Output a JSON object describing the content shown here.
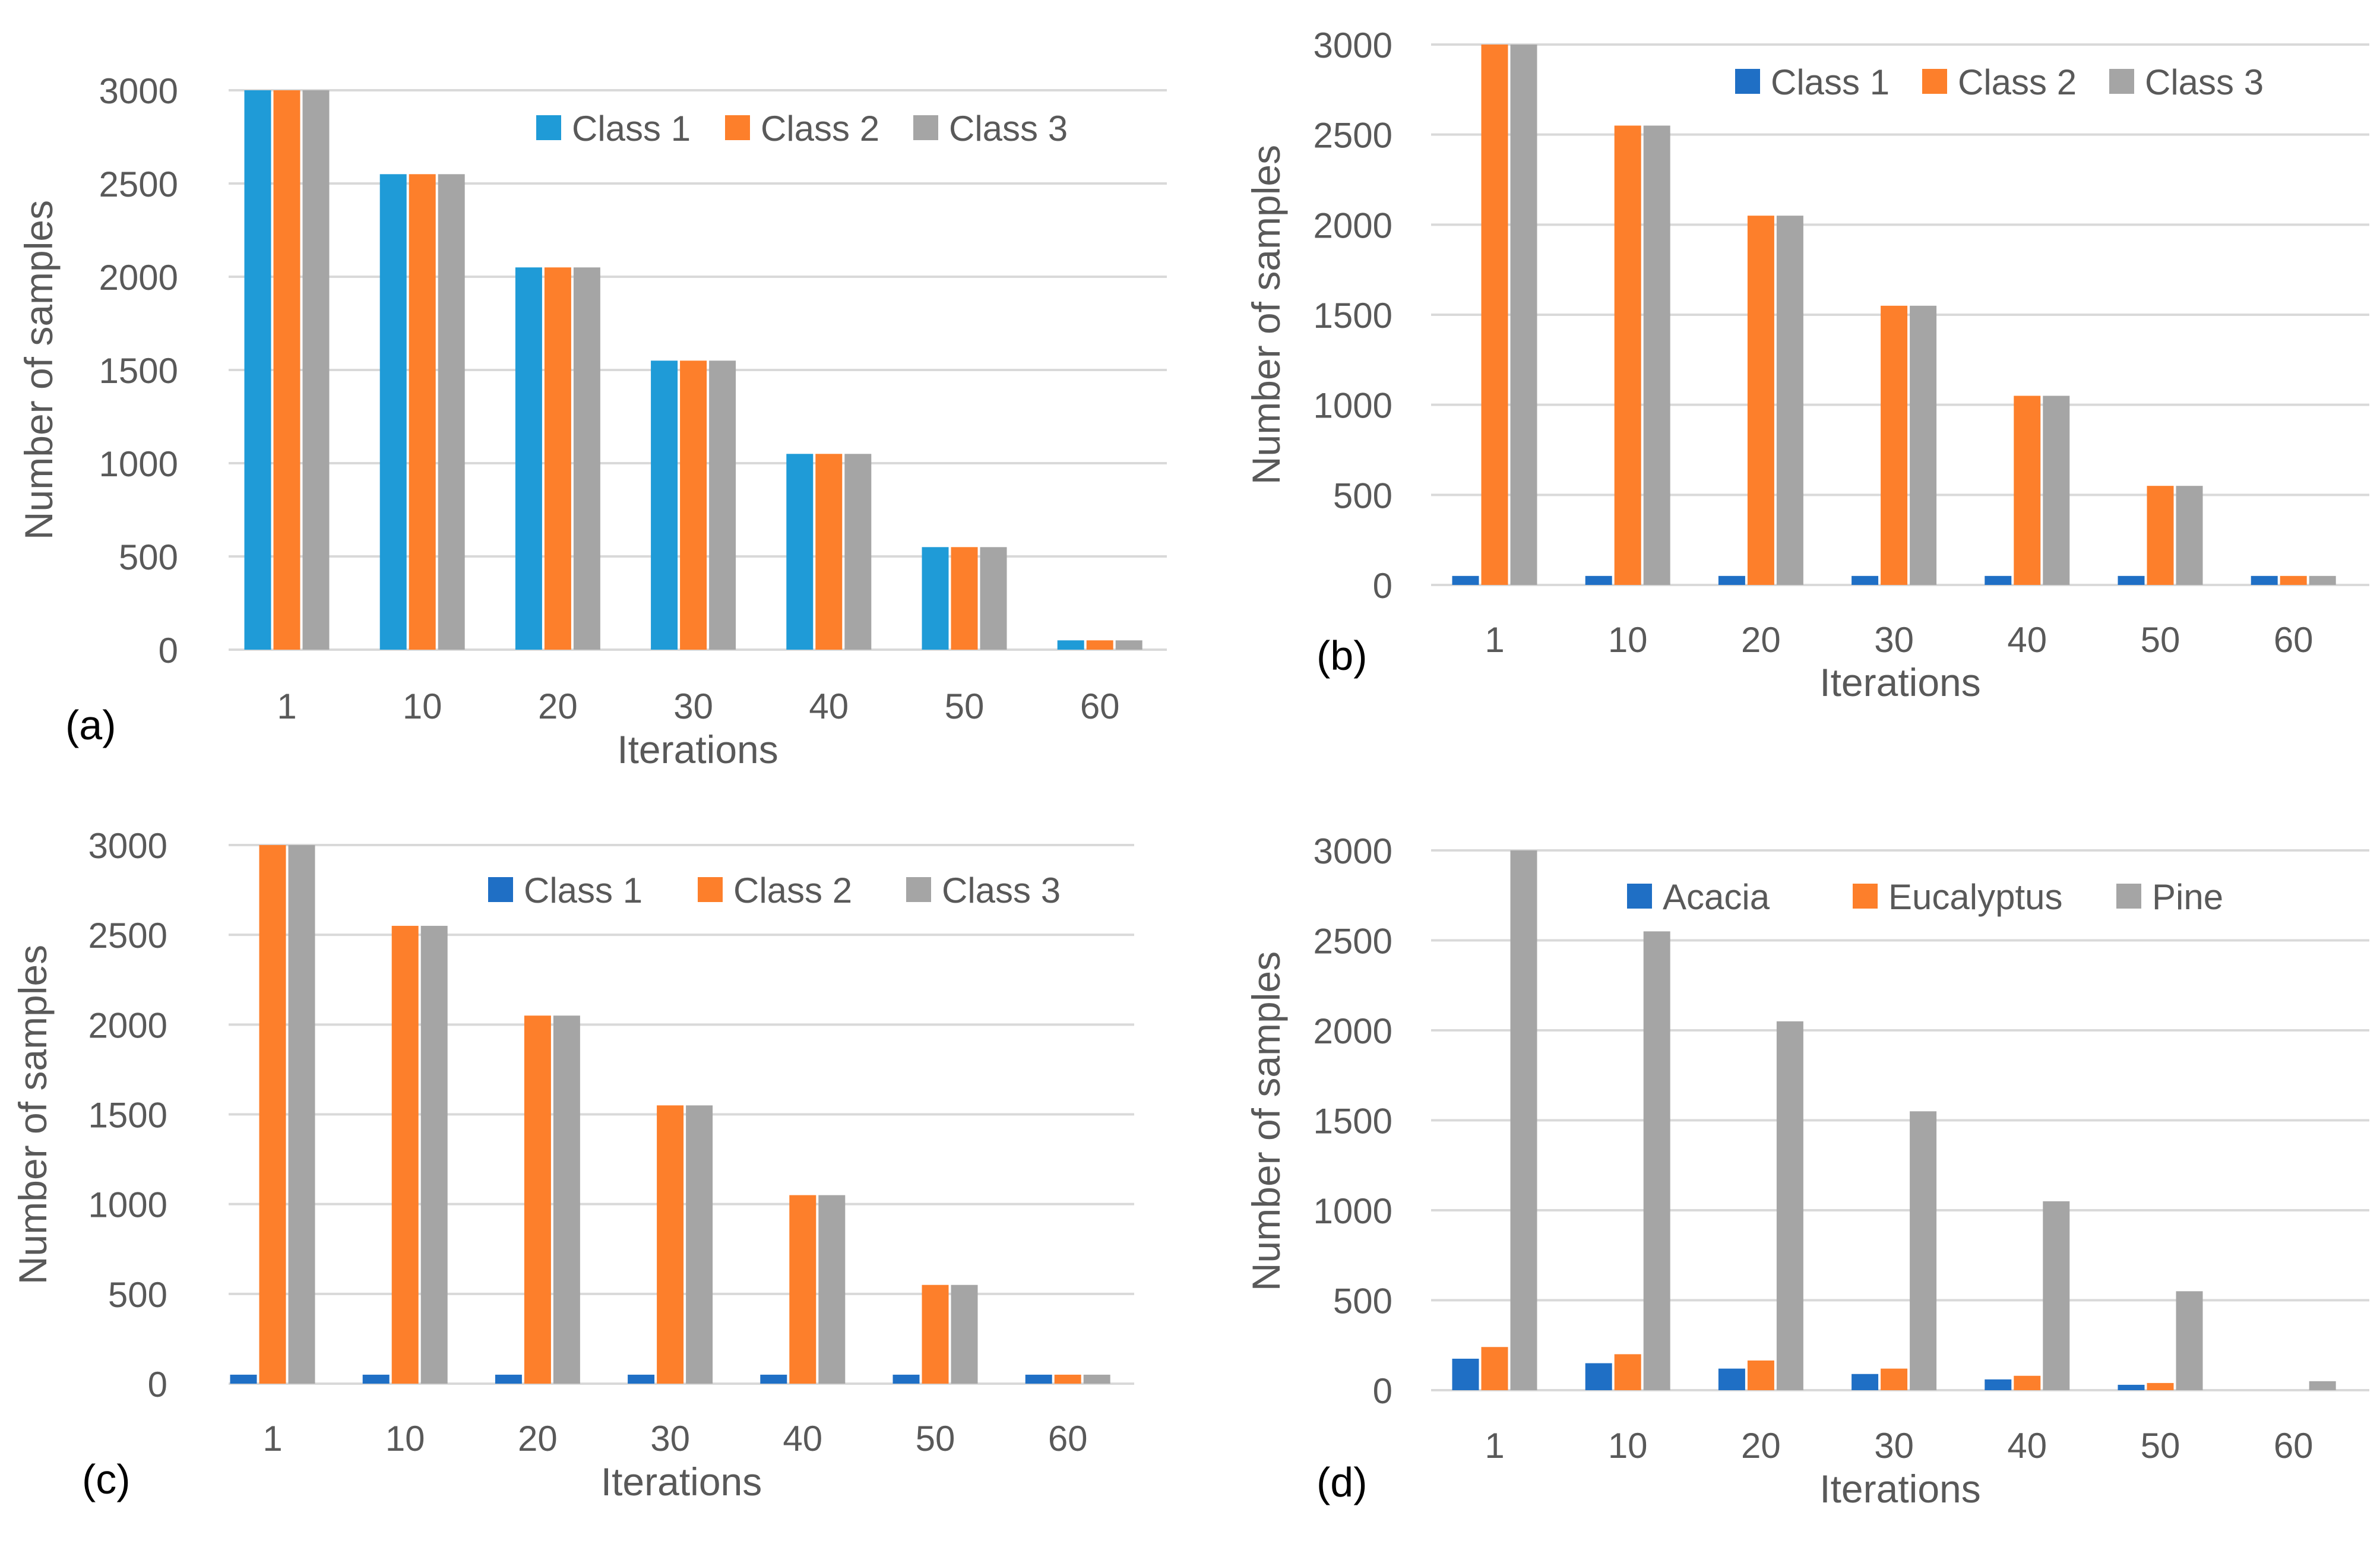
{
  "colors": {
    "blue_light": "#1f9bd7",
    "blue": "#1f6fc5",
    "orange": "#fd7f2b",
    "gray": "#a5a5a5",
    "grid": "#d9d9d9",
    "text": "#595959"
  },
  "chart_data": [
    {
      "type": "bar",
      "panel_label": "(a)",
      "categories": [
        "1",
        "10",
        "20",
        "30",
        "40",
        "50",
        "60"
      ],
      "series": [
        {
          "name": "Class 1",
          "color": "#1f9bd7",
          "values": [
            3000,
            2550,
            2050,
            1550,
            1050,
            550,
            50
          ]
        },
        {
          "name": "Class 2",
          "color": "#fd7f2b",
          "values": [
            3000,
            2550,
            2050,
            1550,
            1050,
            550,
            50
          ]
        },
        {
          "name": "Class 3",
          "color": "#a5a5a5",
          "values": [
            3000,
            2550,
            2050,
            1550,
            1050,
            550,
            50
          ]
        }
      ],
      "yticks": [
        "0",
        "500",
        "1000",
        "1500",
        "2000",
        "2500",
        "3000"
      ],
      "ylim": [
        0,
        3000
      ],
      "xlabel": "Iterations",
      "ylabel": "Number of samples",
      "legend": "top-right",
      "grid": true
    },
    {
      "type": "bar",
      "panel_label": "(b)",
      "categories": [
        "1",
        "10",
        "20",
        "30",
        "40",
        "50",
        "60"
      ],
      "series": [
        {
          "name": "Class 1",
          "color": "#1f6fc5",
          "values": [
            50,
            50,
            50,
            50,
            50,
            50,
            50
          ]
        },
        {
          "name": "Class 2",
          "color": "#fd7f2b",
          "values": [
            3000,
            2550,
            2050,
            1550,
            1050,
            550,
            50
          ]
        },
        {
          "name": "Class 3",
          "color": "#a5a5a5",
          "values": [
            3000,
            2550,
            2050,
            1550,
            1050,
            550,
            50
          ]
        }
      ],
      "yticks": [
        "0",
        "500",
        "1000",
        "1500",
        "2000",
        "2500",
        "3000"
      ],
      "ylim": [
        0,
        3000
      ],
      "xlabel": "Iterations",
      "ylabel": "Number of samples",
      "legend": "top-right",
      "grid": true
    },
    {
      "type": "bar",
      "panel_label": "(c)",
      "categories": [
        "1",
        "10",
        "20",
        "30",
        "40",
        "50",
        "60"
      ],
      "series": [
        {
          "name": "Class 1",
          "color": "#1f6fc5",
          "values": [
            50,
            50,
            50,
            50,
            50,
            50,
            50
          ]
        },
        {
          "name": "Class 2",
          "color": "#fd7f2b",
          "values": [
            3000,
            2550,
            2050,
            1550,
            1050,
            550,
            50
          ]
        },
        {
          "name": "Class 3",
          "color": "#a5a5a5",
          "values": [
            3000,
            2550,
            2050,
            1550,
            1050,
            550,
            50
          ]
        }
      ],
      "yticks": [
        "0",
        "500",
        "1000",
        "1500",
        "2000",
        "2500",
        "3000"
      ],
      "ylim": [
        0,
        3000
      ],
      "xlabel": "Iterations",
      "ylabel": "Number of samples",
      "legend": "top-right",
      "grid": true
    },
    {
      "type": "bar",
      "panel_label": "(d)",
      "categories": [
        "1",
        "10",
        "20",
        "30",
        "40",
        "50",
        "60"
      ],
      "series": [
        {
          "name": "Acacia",
          "color": "#1f6fc5",
          "values": [
            175,
            150,
            120,
            90,
            60,
            30,
            0
          ]
        },
        {
          "name": "Eucalyptus",
          "color": "#fd7f2b",
          "values": [
            240,
            200,
            165,
            120,
            80,
            40,
            0
          ]
        },
        {
          "name": "Pine",
          "color": "#a5a5a5",
          "values": [
            3000,
            2550,
            2050,
            1550,
            1050,
            550,
            50
          ]
        }
      ],
      "yticks": [
        "0",
        "500",
        "1000",
        "1500",
        "2000",
        "2500",
        "3000"
      ],
      "ylim": [
        0,
        3000
      ],
      "xlabel": "Iterations",
      "ylabel": "Number of samples",
      "legend": "top-right",
      "grid": true
    }
  ]
}
